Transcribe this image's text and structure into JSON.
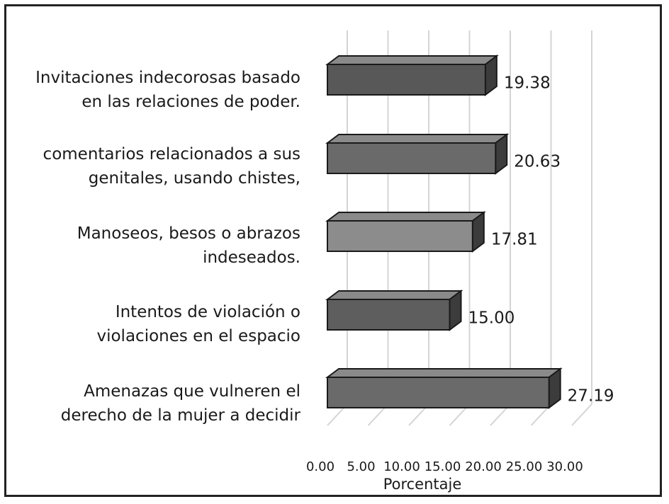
{
  "chart_data": {
    "type": "bar",
    "orientation": "horizontal",
    "style": "3d",
    "categories": [
      [
        "Invitaciones indecorosas basado",
        "en las relaciones de poder."
      ],
      [
        "comentarios relacionados a sus",
        "genitales, usando chistes,"
      ],
      [
        "Manoseos, besos o abrazos",
        "indeseados."
      ],
      [
        "Intentos de violación o",
        "violaciones en el espacio"
      ],
      [
        "Amenazas que vulneren el",
        "derecho de la mujer a decidir"
      ]
    ],
    "values": [
      19.38,
      20.63,
      17.81,
      15.0,
      27.19
    ],
    "value_labels": [
      "19.38",
      "20.63",
      "17.81",
      "15.00",
      "27.19"
    ],
    "x_ticks": [
      "0.00",
      "5.00",
      "10.00",
      "15.00",
      "20.00",
      "25.00",
      "30.00"
    ],
    "xlim": [
      0,
      30
    ],
    "xlabel": "Porcentaje",
    "grid": true,
    "colors": {
      "bar_front": [
        "#585858",
        "#6a6a6a",
        "#8c8c8c",
        "#5e5e5e",
        "#6a6a6a"
      ],
      "bar_top": "#8a8a8a",
      "bar_side": "#3c3c3c",
      "bar_stroke": "#1a1a1a",
      "grid": "#d4d4d4"
    }
  }
}
